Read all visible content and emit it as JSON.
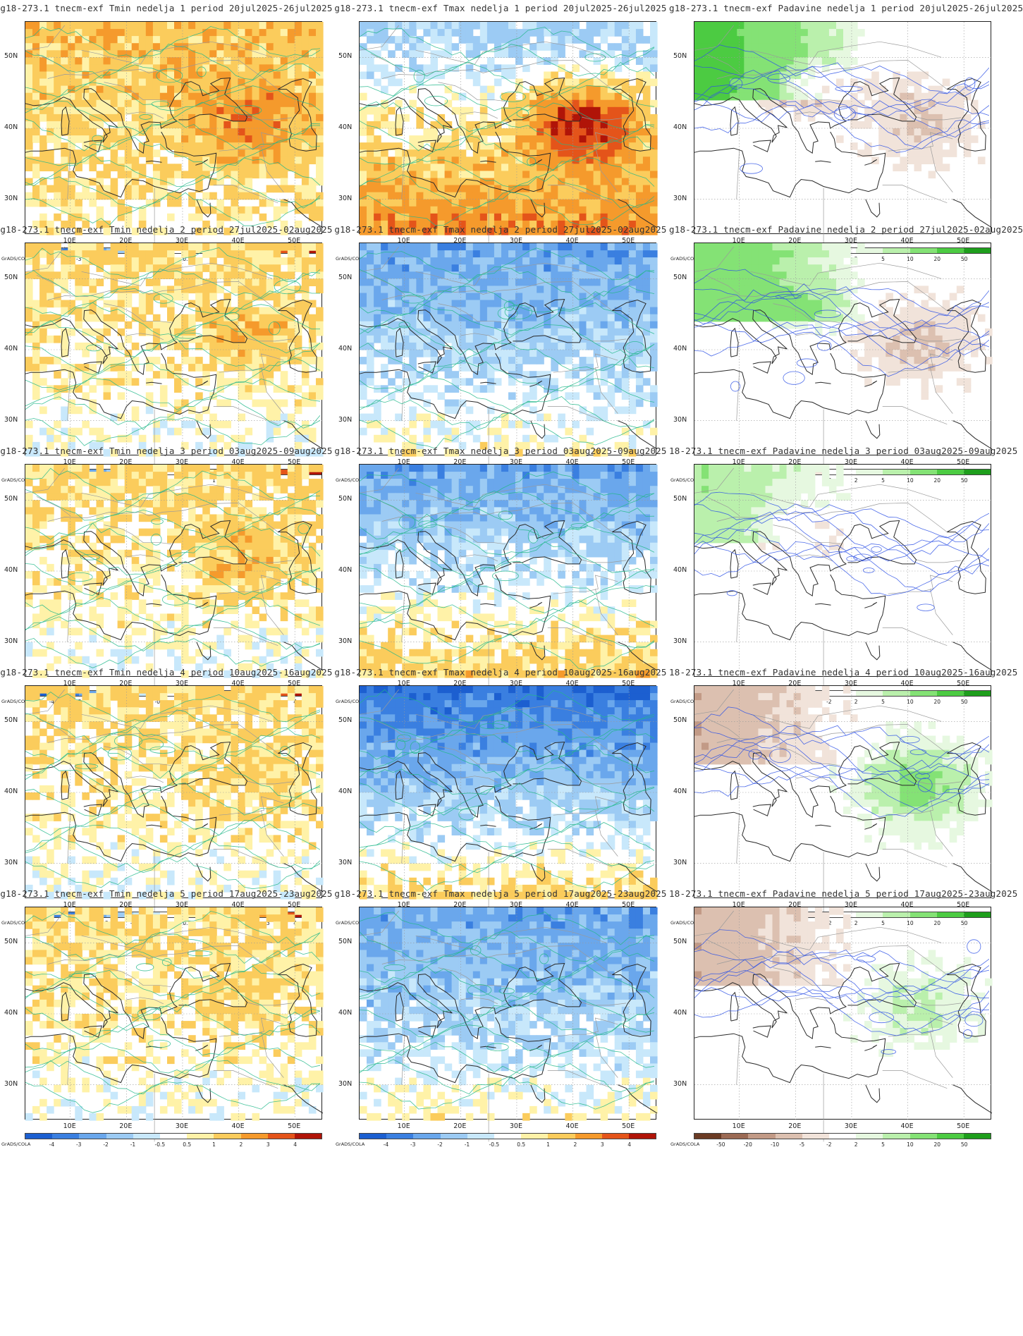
{
  "page": {
    "credit": "GrADS/COLA",
    "lat_labels": [
      "50N",
      "40N",
      "30N"
    ],
    "lon_labels": [
      "10E",
      "20E",
      "30E",
      "40E",
      "50E"
    ]
  },
  "legends": {
    "temp": {
      "labels": [
        "-4",
        "-3",
        "-2",
        "-1",
        "-0.5",
        "0.5",
        "1",
        "2",
        "3",
        "4"
      ],
      "colors": [
        "#1c5fd0",
        "#3a7fe0",
        "#6aa7ec",
        "#9ccbf4",
        "#c8e8fb",
        "#ffffff",
        "#fff2a8",
        "#fbcc5c",
        "#f59a2c",
        "#e4541a",
        "#b01408"
      ]
    },
    "precip": {
      "labels": [
        "-50",
        "-20",
        "-10",
        "-5",
        "-2",
        "2",
        "5",
        "10",
        "20",
        "50"
      ],
      "colors": [
        "#6b3b24",
        "#9b6a54",
        "#c29a86",
        "#dcc0b0",
        "#f1e3da",
        "#ffffff",
        "#e6f8e0",
        "#baf0ac",
        "#84e275",
        "#4ccb42",
        "#1e9e1c"
      ]
    }
  },
  "panels": [
    {
      "row": 1,
      "title": "g18-273.1 tnecm-exf Tmin nedelja 1 period 20jul2025-26jul2025",
      "var": "tmin",
      "week": 1,
      "levels": [
        2,
        3,
        4
      ]
    },
    {
      "row": 1,
      "title": "g18-273.1 tnecm-exf Tmax nedelja 1 period 20jul2025-26jul2025",
      "var": "tmax",
      "week": 1,
      "levels": [
        -1,
        2,
        4
      ]
    },
    {
      "row": 1,
      "title": "g18-273.1 tnecm-exf Padavine nedelja 1 period 20jul2025-26jul2025",
      "var": "precip",
      "week": 1,
      "levels": [
        3,
        -1,
        -2
      ]
    },
    {
      "row": 2,
      "title": "g18-273.1 tnecm-exf Tmin nedelja 2 period 27jul2025-02aug2025",
      "var": "tmin",
      "week": 2,
      "levels": [
        1,
        2,
        3
      ]
    },
    {
      "row": 2,
      "title": "g18-273.1 tnecm-exf Tmax nedelja 2 period 27jul2025-02aug2025",
      "var": "tmax",
      "week": 2,
      "levels": [
        -2,
        -1,
        0
      ]
    },
    {
      "row": 2,
      "title": "g18-273.1 tnecm-exf Padavine nedelja 2 period 27jul2025-02aug2025",
      "var": "precip",
      "week": 2,
      "levels": [
        2,
        -1,
        1
      ]
    },
    {
      "row": 3,
      "title": "g18-273.1 tnecm-exf Tmin nedelja 3 period 03aug2025-09aug2025",
      "var": "tmin",
      "week": 3,
      "levels": [
        1,
        2,
        3
      ]
    },
    {
      "row": 3,
      "title": "g18-273.1 tnecm-exf Tmax nedelja 3 period 03aug2025-09aug2025",
      "var": "tmax",
      "week": 3,
      "levels": [
        -2,
        0,
        0
      ]
    },
    {
      "row": 3,
      "title": "18-273.1 tnecm-exf Padavine nedelja 3 period 03aug2025-09aug2025",
      "var": "precip",
      "week": 3,
      "levels": [
        1,
        0,
        -1
      ]
    },
    {
      "row": 4,
      "title": "g18-273.1 tnecm-exf Tmin nedelja 4 period 10aug2025-16aug2025",
      "var": "tmin",
      "week": 4,
      "levels": [
        1,
        1,
        2
      ]
    },
    {
      "row": 4,
      "title": "g18-273.1 tnecm-exf Tmax nedelja 4 period 10aug2025-16aug2025",
      "var": "tmax",
      "week": 4,
      "levels": [
        -3,
        -1,
        0
      ]
    },
    {
      "row": 4,
      "title": "18-273.1 tnecm-exf Padavine nedelja 4 period 10aug2025-16aug2025",
      "var": "precip",
      "week": 4,
      "levels": [
        -1,
        2,
        0
      ]
    },
    {
      "row": 5,
      "title": "g18-273.1 tnecm-exf Tmin nedelja 5 period 17aug2025-23aug2025",
      "var": "tmin",
      "week": 5,
      "levels": [
        1,
        1,
        1
      ]
    },
    {
      "row": 5,
      "title": "g18-273.1 tnecm-exf Tmax nedelja 5 period 17aug2025-23aug2025",
      "var": "tmax",
      "week": 5,
      "levels": [
        -2,
        -1,
        0
      ]
    },
    {
      "row": 5,
      "title": "18-273.1 tnecm-exf Padavine nedelja 5 period 17aug2025-23aug2025",
      "var": "precip",
      "week": 5,
      "levels": [
        -1,
        1,
        0
      ]
    }
  ]
}
